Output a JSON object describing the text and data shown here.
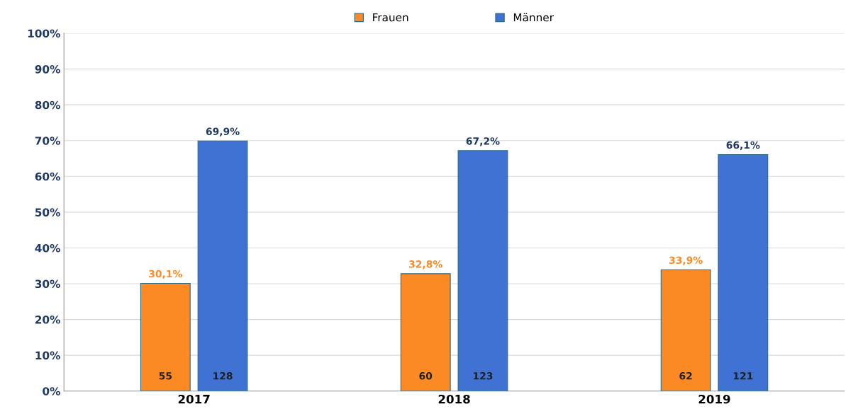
{
  "chart_data": {
    "type": "bar",
    "categories": [
      "2017",
      "2018",
      "2019"
    ],
    "series": [
      {
        "name": "Frauen",
        "color": "#fb8a24",
        "values": [
          30.1,
          32.8,
          33.9
        ],
        "value_labels": [
          "30,1%",
          "32,8%",
          "33,9%"
        ]
      },
      {
        "name": "Männer",
        "color": "#3f72d2",
        "values": [
          69.9,
          67.2,
          66.1
        ],
        "value_labels": [
          "69,9%",
          "67,2%",
          "66,1%"
        ]
      }
    ],
    "ylim": [
      0,
      100
    ],
    "yticks": [
      {
        "value": 0,
        "label": "0%"
      },
      {
        "value": 10,
        "label": "10%"
      },
      {
        "value": 20,
        "label": "20%"
      },
      {
        "value": 30,
        "label": "30%"
      },
      {
        "value": 40,
        "label": "40%"
      },
      {
        "value": 50,
        "label": "50%"
      },
      {
        "value": 60,
        "label": "60%"
      },
      {
        "value": 70,
        "label": "70%"
      },
      {
        "value": 80,
        "label": "80%"
      },
      {
        "value": 90,
        "label": "90%"
      },
      {
        "value": 100,
        "label": "100%"
      }
    ],
    "grid": "y",
    "legend": "top",
    "annotations": [
      "55",
      "128",
      "60",
      "123",
      "62",
      "121"
    ]
  }
}
